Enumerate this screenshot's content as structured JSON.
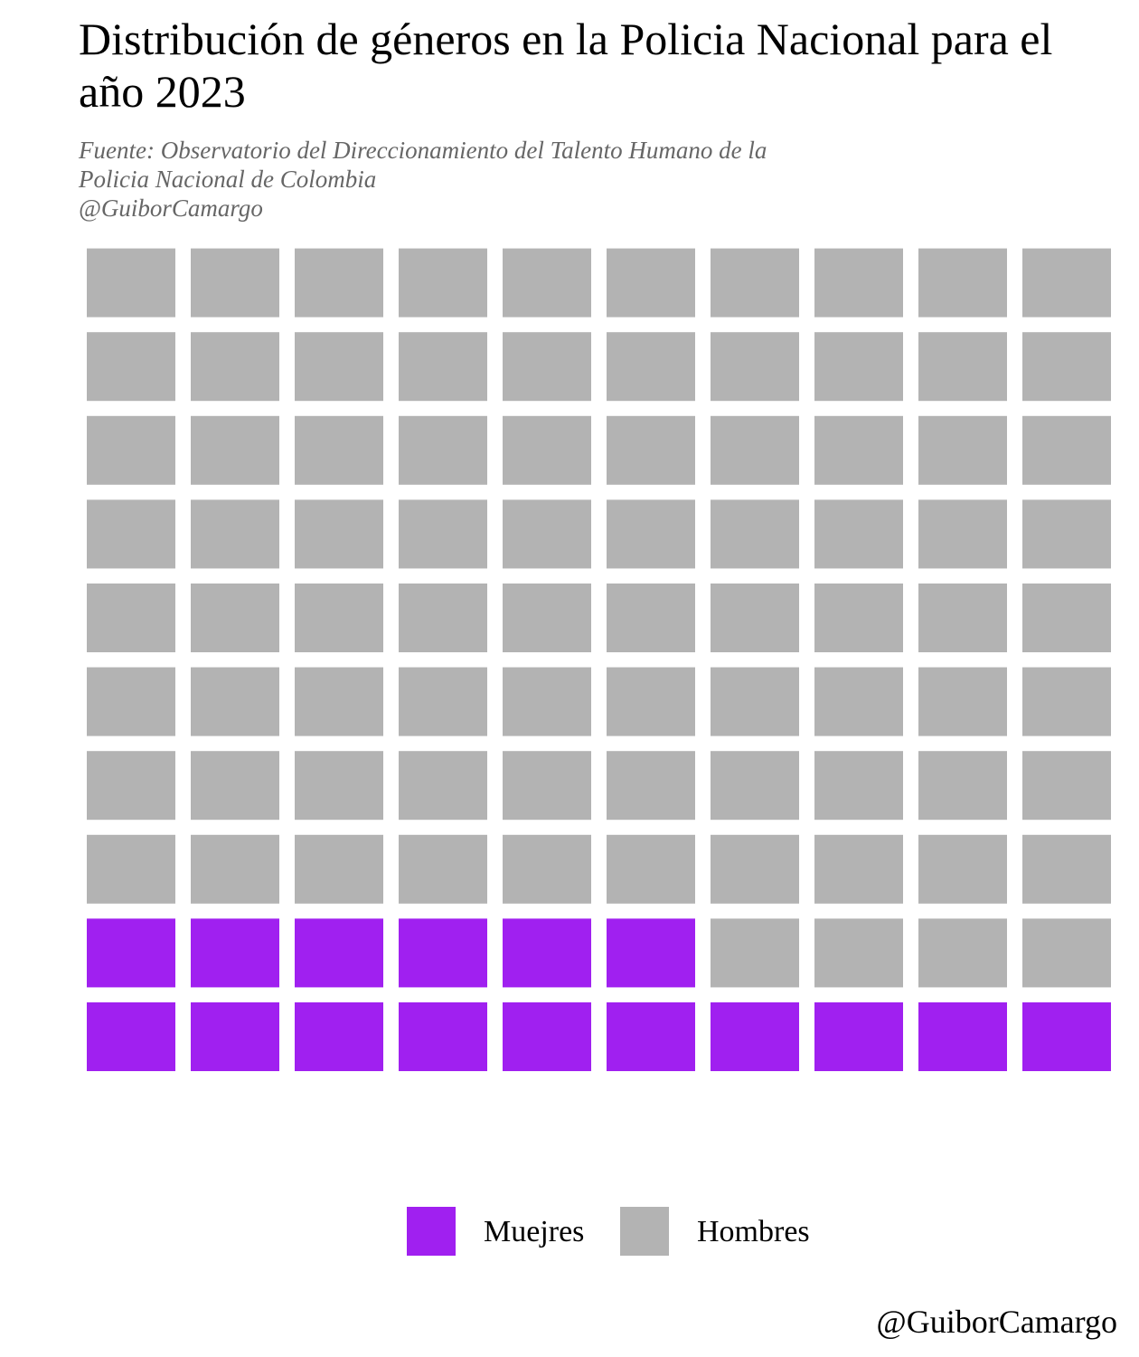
{
  "chart_data": {
    "type": "waffle",
    "title": "Distribución de géneros en la Policia Nacional para el año 2023",
    "subtitle_lines": [
      "Fuente: Observatorio del Direccionamiento del Talento Humano de la",
      "Policia Nacional de Colombia",
      "@GuiborCamargo"
    ],
    "rows": 10,
    "columns": 10,
    "fill_order": "bottom-up, left-to-right",
    "categories": [
      {
        "name": "Muejres",
        "value": 16,
        "color": "#a020f0"
      },
      {
        "name": "Hombres",
        "value": 84,
        "color": "#b3b3b3"
      }
    ],
    "legend_position": "bottom",
    "grid": false
  },
  "caption": "@GuiborCamargo"
}
